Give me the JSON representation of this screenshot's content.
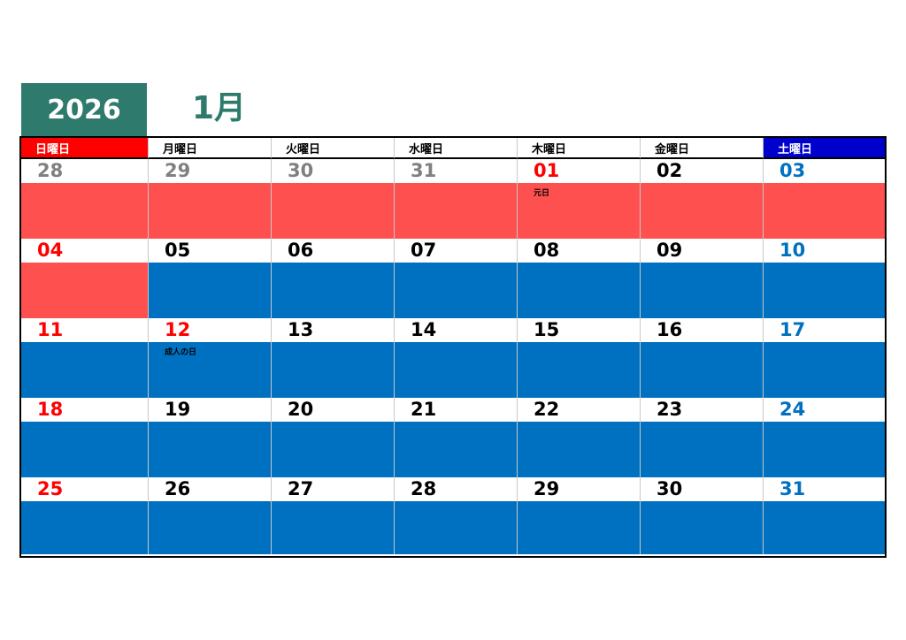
{
  "header": {
    "year": "2026",
    "month": "1月"
  },
  "colors": {
    "sunday_header_bg": "#ff0000",
    "saturday_header_bg": "#0000cc",
    "holiday_fill": "#ff5050",
    "weekday_fill": "#0070c0",
    "sunday_text": "#ff0000",
    "saturday_text": "#0070c0",
    "other_month_text": "#808080",
    "weekday_text": "#000000"
  },
  "weekdays": [
    "日曜日",
    "月曜日",
    "火曜日",
    "水曜日",
    "木曜日",
    "金曜日",
    "土曜日"
  ],
  "weeks": [
    [
      {
        "day": "28",
        "type": "other",
        "fill": "holiday"
      },
      {
        "day": "29",
        "type": "other",
        "fill": "holiday"
      },
      {
        "day": "30",
        "type": "other",
        "fill": "holiday"
      },
      {
        "day": "31",
        "type": "other",
        "fill": "holiday"
      },
      {
        "day": "01",
        "type": "holiday",
        "fill": "holiday",
        "holiday": "元日"
      },
      {
        "day": "02",
        "type": "weekday",
        "fill": "holiday"
      },
      {
        "day": "03",
        "type": "saturday",
        "fill": "holiday"
      }
    ],
    [
      {
        "day": "04",
        "type": "sunday",
        "fill": "holiday"
      },
      {
        "day": "05",
        "type": "weekday",
        "fill": "weekday"
      },
      {
        "day": "06",
        "type": "weekday",
        "fill": "weekday"
      },
      {
        "day": "07",
        "type": "weekday",
        "fill": "weekday"
      },
      {
        "day": "08",
        "type": "weekday",
        "fill": "weekday"
      },
      {
        "day": "09",
        "type": "weekday",
        "fill": "weekday"
      },
      {
        "day": "10",
        "type": "saturday",
        "fill": "weekday"
      }
    ],
    [
      {
        "day": "11",
        "type": "sunday",
        "fill": "weekday"
      },
      {
        "day": "12",
        "type": "holiday",
        "fill": "weekday",
        "holiday": "成人の日"
      },
      {
        "day": "13",
        "type": "weekday",
        "fill": "weekday"
      },
      {
        "day": "14",
        "type": "weekday",
        "fill": "weekday"
      },
      {
        "day": "15",
        "type": "weekday",
        "fill": "weekday"
      },
      {
        "day": "16",
        "type": "weekday",
        "fill": "weekday"
      },
      {
        "day": "17",
        "type": "saturday",
        "fill": "weekday"
      }
    ],
    [
      {
        "day": "18",
        "type": "sunday",
        "fill": "weekday"
      },
      {
        "day": "19",
        "type": "weekday",
        "fill": "weekday"
      },
      {
        "day": "20",
        "type": "weekday",
        "fill": "weekday"
      },
      {
        "day": "21",
        "type": "weekday",
        "fill": "weekday"
      },
      {
        "day": "22",
        "type": "weekday",
        "fill": "weekday"
      },
      {
        "day": "23",
        "type": "weekday",
        "fill": "weekday"
      },
      {
        "day": "24",
        "type": "saturday",
        "fill": "weekday"
      }
    ],
    [
      {
        "day": "25",
        "type": "sunday",
        "fill": "weekday"
      },
      {
        "day": "26",
        "type": "weekday",
        "fill": "weekday"
      },
      {
        "day": "27",
        "type": "weekday",
        "fill": "weekday"
      },
      {
        "day": "28",
        "type": "weekday",
        "fill": "weekday"
      },
      {
        "day": "29",
        "type": "weekday",
        "fill": "weekday"
      },
      {
        "day": "30",
        "type": "weekday",
        "fill": "weekday"
      },
      {
        "day": "31",
        "type": "saturday",
        "fill": "weekday"
      }
    ]
  ]
}
